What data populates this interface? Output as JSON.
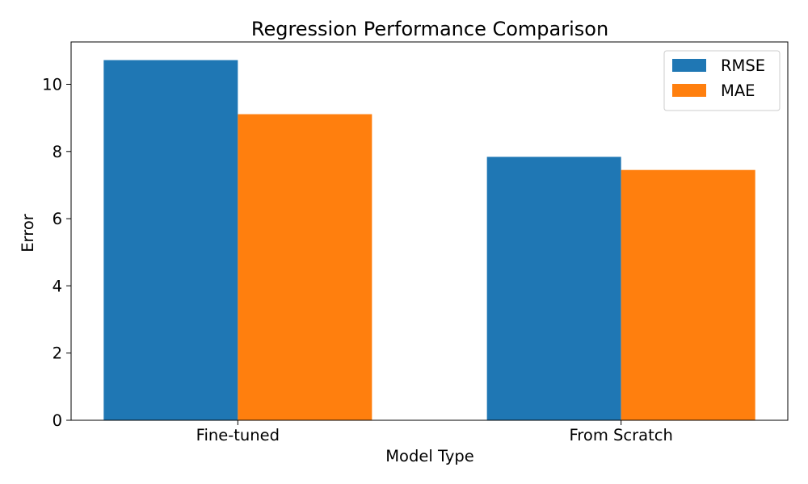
{
  "chart_data": {
    "type": "bar",
    "title": "Regression Performance Comparison",
    "xlabel": "Model Type",
    "ylabel": "Error",
    "categories": [
      "Fine-tuned",
      "From Scratch"
    ],
    "series": [
      {
        "name": "RMSE",
        "values": [
          10.72,
          7.84
        ],
        "color": "#1f77b4"
      },
      {
        "name": "MAE",
        "values": [
          9.11,
          7.45
        ],
        "color": "#ff7f0e"
      }
    ],
    "ylim": [
      0,
      11.26
    ],
    "yticks": [
      0,
      2,
      4,
      6,
      8,
      10
    ],
    "grid": false,
    "legend_position": "top-right"
  }
}
